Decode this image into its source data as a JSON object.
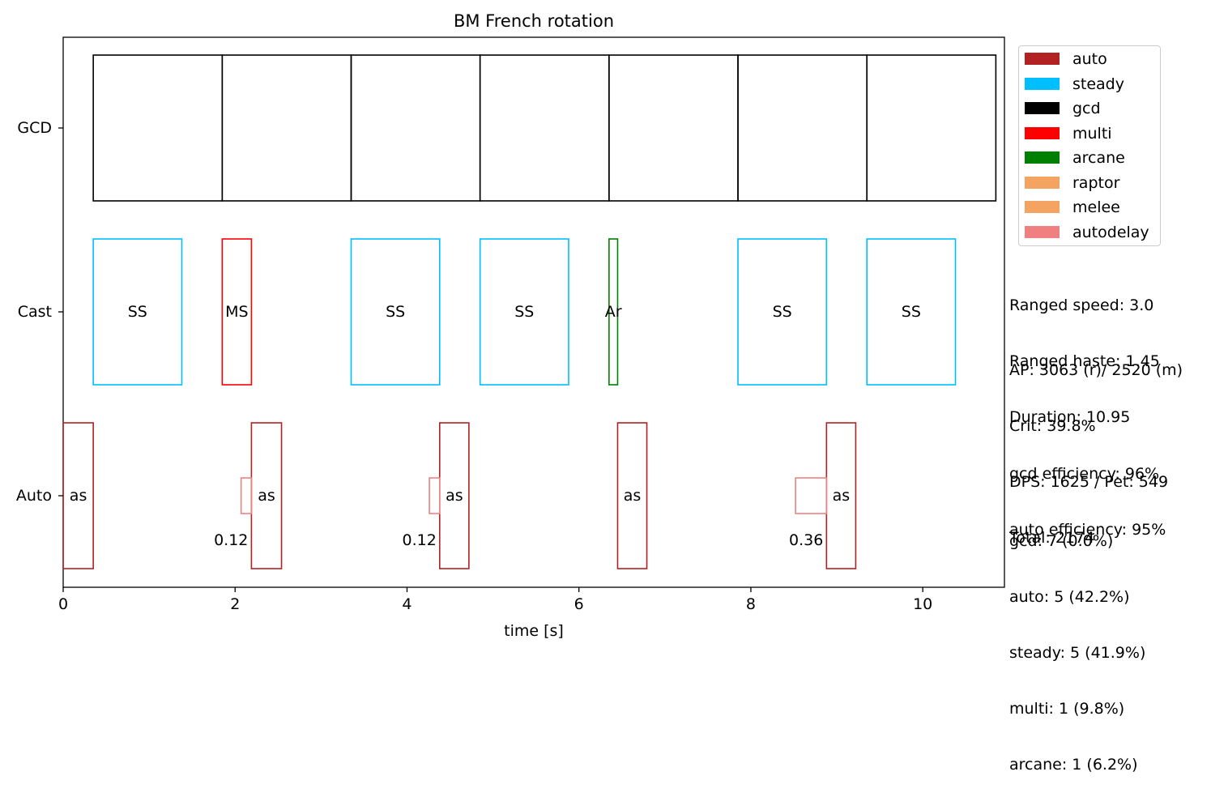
{
  "chart_data": {
    "type": "timeline",
    "title": "BM French rotation",
    "xlabel": "time [s]",
    "xlim": [
      0,
      10.95
    ],
    "xticks": [
      "0",
      "2",
      "4",
      "6",
      "8",
      "10"
    ],
    "rows": [
      "GCD",
      "Cast",
      "Auto"
    ],
    "legend_position": "upper right, outside axes",
    "legend": [
      {
        "label": "auto",
        "color": "#b22222"
      },
      {
        "label": "steady",
        "color": "#00bfff"
      },
      {
        "label": "gcd",
        "color": "#000000"
      },
      {
        "label": "multi",
        "color": "#ff0000"
      },
      {
        "label": "arcane",
        "color": "#008000"
      },
      {
        "label": "raptor",
        "color": "#f4a460"
      },
      {
        "label": "melee",
        "color": "#f4a460"
      },
      {
        "label": "autodelay",
        "color": "#f08080"
      }
    ],
    "gcd": [
      {
        "start": 0.35,
        "end": 1.85
      },
      {
        "start": 1.85,
        "end": 3.35
      },
      {
        "start": 3.35,
        "end": 4.85
      },
      {
        "start": 4.85,
        "end": 6.35
      },
      {
        "start": 6.35,
        "end": 7.85
      },
      {
        "start": 7.85,
        "end": 9.35
      },
      {
        "start": 9.35,
        "end": 10.85
      }
    ],
    "cast": [
      {
        "start": 0.35,
        "end": 1.38,
        "label": "SS",
        "type": "steady"
      },
      {
        "start": 1.85,
        "end": 2.19,
        "label": "MS",
        "type": "multi"
      },
      {
        "start": 3.35,
        "end": 4.38,
        "label": "SS",
        "type": "steady"
      },
      {
        "start": 4.85,
        "end": 5.88,
        "label": "SS",
        "type": "steady"
      },
      {
        "start": 6.35,
        "end": 6.45,
        "label": "Ar",
        "type": "arcane"
      },
      {
        "start": 7.85,
        "end": 8.88,
        "label": "SS",
        "type": "steady"
      },
      {
        "start": 9.35,
        "end": 10.38,
        "label": "SS",
        "type": "steady"
      }
    ],
    "auto": [
      {
        "start": 0.0,
        "end": 0.35,
        "label": "as"
      },
      {
        "start": 2.19,
        "end": 2.54,
        "label": "as"
      },
      {
        "start": 4.38,
        "end": 4.72,
        "label": "as"
      },
      {
        "start": 6.45,
        "end": 6.79,
        "label": "as"
      },
      {
        "start": 8.88,
        "end": 9.22,
        "label": "as"
      }
    ],
    "autodelay": [
      {
        "start": 2.07,
        "end": 2.19,
        "label": "0.12"
      },
      {
        "start": 4.26,
        "end": 4.38,
        "label": "0.12"
      },
      {
        "start": 8.52,
        "end": 8.88,
        "label": "0.36"
      }
    ]
  },
  "stats": {
    "block1": [
      "Ranged speed: 3.0",
      "Ranged haste: 1.45",
      "Duration: 10.95"
    ],
    "block2": [
      "AP: 3063 (r)/ 2520 (m)",
      "Crit: 39.8%",
      "DPS: 1625 / Pet: 549",
      "Total: 2174"
    ],
    "block3": [
      "gcd efficiency: 96%",
      "auto efficiency: 95%"
    ],
    "block4": [
      "gcd: 7 (0.0%)",
      "auto: 5 (42.2%)",
      "steady: 5 (41.9%)",
      "multi: 1 (9.8%)",
      "arcane: 1 (6.2%)"
    ]
  }
}
